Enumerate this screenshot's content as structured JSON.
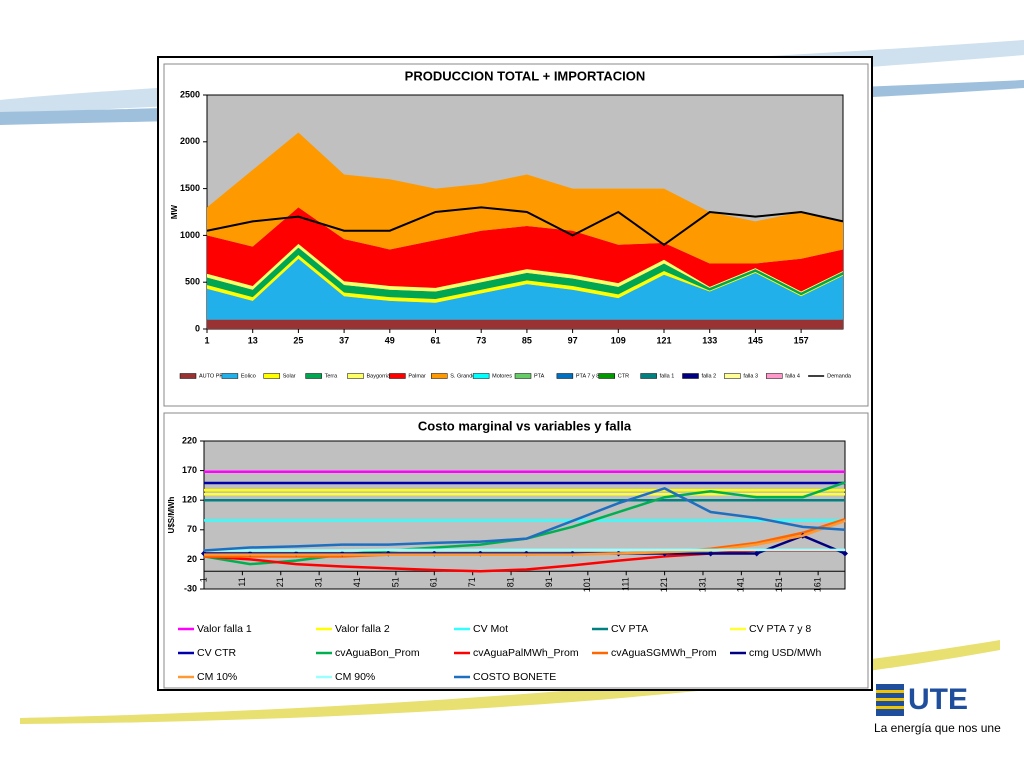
{
  "chart_data": [
    {
      "type": "area",
      "title": "PRODUCCION TOTAL + IMPORTACION",
      "ylabel": "MW",
      "x": [
        1,
        13,
        25,
        37,
        49,
        61,
        73,
        85,
        97,
        109,
        121,
        133,
        145,
        157,
        168
      ],
      "xlim": [
        1,
        168
      ],
      "xticks": [
        1,
        13,
        25,
        37,
        49,
        61,
        73,
        85,
        97,
        109,
        121,
        133,
        145,
        157
      ],
      "ylim": [
        0,
        2500
      ],
      "yticks": [
        0,
        500,
        1000,
        1500,
        2000,
        2500
      ],
      "series": [
        {
          "name": "AUTO PROD",
          "color": "#993333",
          "values": [
            100,
            100,
            100,
            100,
            100,
            100,
            100,
            100,
            100,
            100,
            100,
            100,
            100,
            100,
            100
          ]
        },
        {
          "name": "Eolico",
          "color": "#22b0ea",
          "values": [
            330,
            200,
            650,
            250,
            200,
            180,
            280,
            380,
            320,
            230,
            480,
            300,
            500,
            250,
            470
          ]
        },
        {
          "name": "Solar",
          "color": "#ffff00",
          "values": [
            40,
            40,
            40,
            40,
            40,
            40,
            40,
            40,
            40,
            40,
            40,
            10,
            10,
            10,
            10
          ]
        },
        {
          "name": "Terra",
          "color": "#00a651",
          "values": [
            80,
            80,
            80,
            80,
            80,
            80,
            80,
            80,
            80,
            80,
            80,
            30,
            30,
            30,
            30
          ]
        },
        {
          "name": "Baygorria",
          "color": "#ffff66",
          "values": [
            40,
            40,
            40,
            40,
            40,
            40,
            40,
            40,
            40,
            40,
            40,
            10,
            10,
            10,
            10
          ]
        },
        {
          "name": "Palmar",
          "color": "#ff0000",
          "values": [
            410,
            420,
            390,
            450,
            390,
            510,
            510,
            460,
            470,
            410,
            180,
            250,
            50,
            350,
            230
          ]
        },
        {
          "name": "S. Grande",
          "color": "#ff9900",
          "values": [
            300,
            820,
            800,
            690,
            750,
            550,
            500,
            550,
            450,
            600,
            580,
            550,
            450,
            500,
            300
          ]
        },
        {
          "name": "Motores",
          "color": "#00ffff",
          "values": [
            0,
            0,
            0,
            0,
            0,
            0,
            0,
            0,
            0,
            0,
            0,
            0,
            0,
            0,
            0
          ]
        },
        {
          "name": "PTA",
          "color": "#66cc66",
          "values": [
            0,
            0,
            0,
            0,
            0,
            0,
            0,
            0,
            0,
            0,
            0,
            0,
            0,
            0,
            0
          ]
        },
        {
          "name": "PTA 7 y 8",
          "color": "#0070c0",
          "values": [
            0,
            0,
            0,
            0,
            0,
            0,
            0,
            0,
            0,
            0,
            0,
            0,
            0,
            0,
            0
          ]
        },
        {
          "name": "CTR",
          "color": "#009900",
          "values": [
            0,
            0,
            0,
            0,
            0,
            0,
            0,
            0,
            0,
            0,
            0,
            0,
            0,
            0,
            0
          ]
        },
        {
          "name": "falla 1",
          "color": "#008080",
          "values": [
            0,
            0,
            0,
            0,
            0,
            0,
            0,
            0,
            0,
            0,
            0,
            0,
            0,
            0,
            0
          ]
        },
        {
          "name": "falla 2",
          "color": "#000080",
          "values": [
            0,
            0,
            0,
            0,
            0,
            0,
            0,
            0,
            0,
            0,
            0,
            0,
            0,
            0,
            0
          ]
        },
        {
          "name": "falla 3",
          "color": "#ffff99",
          "values": [
            0,
            0,
            0,
            0,
            0,
            0,
            0,
            0,
            0,
            0,
            0,
            0,
            0,
            0,
            0
          ]
        },
        {
          "name": "falla 4",
          "color": "#ff99cc",
          "values": [
            0,
            0,
            0,
            0,
            0,
            0,
            0,
            0,
            0,
            0,
            0,
            0,
            0,
            0,
            0
          ]
        },
        {
          "name": "Demanda",
          "color": "#000000",
          "type": "line",
          "values": [
            1050,
            1150,
            1200,
            1050,
            1050,
            1250,
            1300,
            1250,
            1000,
            1250,
            900,
            1250,
            1200,
            1250,
            1150
          ]
        }
      ]
    },
    {
      "type": "line",
      "title": "Costo marginal  vs variables  y falla",
      "ylabel": "U$S/MWh",
      "x": [
        1,
        13,
        25,
        37,
        49,
        61,
        73,
        85,
        97,
        109,
        121,
        133,
        145,
        157,
        168
      ],
      "xlim": [
        1,
        168
      ],
      "xticks": [
        1,
        11,
        21,
        31,
        41,
        51,
        61,
        71,
        81,
        91,
        101,
        111,
        121,
        131,
        141,
        151,
        161
      ],
      "ylim": [
        -30,
        220
      ],
      "yticks": [
        -30,
        20,
        70,
        120,
        170,
        220
      ],
      "series": [
        {
          "name": "Valor falla 1",
          "color": "#ff00ff",
          "values": [
            168,
            168,
            168,
            168,
            168,
            168,
            168,
            168,
            168,
            168,
            168,
            168,
            168,
            168,
            168
          ]
        },
        {
          "name": "Valor falla 2",
          "color": "#ffff00",
          "values": [
            137,
            137,
            137,
            137,
            137,
            137,
            137,
            137,
            137,
            137,
            137,
            137,
            137,
            137,
            137
          ]
        },
        {
          "name": "CV Mot",
          "color": "#33ffff",
          "values": [
            86,
            86,
            86,
            86,
            86,
            86,
            86,
            86,
            86,
            86,
            86,
            86,
            86,
            86,
            86
          ]
        },
        {
          "name": "CV PTA",
          "color": "#008080",
          "values": [
            120,
            120,
            120,
            120,
            120,
            120,
            120,
            120,
            120,
            120,
            120,
            120,
            120,
            120,
            120
          ]
        },
        {
          "name": "CV PTA 7 y 8",
          "color": "#ffff33",
          "values": [
            130,
            130,
            130,
            130,
            130,
            130,
            130,
            130,
            130,
            130,
            130,
            130,
            130,
            130,
            130
          ]
        },
        {
          "name": "CV CTR",
          "color": "#0000aa",
          "values": [
            149,
            149,
            149,
            149,
            149,
            149,
            149,
            149,
            149,
            149,
            149,
            149,
            149,
            149,
            149
          ]
        },
        {
          "name": "cvAguaBon_Prom",
          "color": "#00b050",
          "values": [
            25,
            12,
            18,
            28,
            35,
            40,
            45,
            55,
            75,
            100,
            125,
            135,
            125,
            125,
            150
          ]
        },
        {
          "name": "cvAguaPalMWh_Prom",
          "color": "#ff0000",
          "values": [
            25,
            20,
            12,
            8,
            5,
            2,
            0,
            3,
            10,
            18,
            25,
            30,
            35,
            35,
            35
          ]
        },
        {
          "name": "cvAguaSGMWh_Prom",
          "color": "#ff6600",
          "values": [
            25,
            25,
            25,
            25,
            28,
            28,
            28,
            28,
            30,
            30,
            32,
            38,
            48,
            65,
            88
          ]
        },
        {
          "name": "cmg USD/MWh",
          "color": "#000080",
          "marker": true,
          "values": [
            30,
            30,
            30,
            30,
            30,
            30,
            30,
            30,
            30,
            30,
            30,
            30,
            30,
            60,
            30
          ]
        },
        {
          "name": "CM 10%",
          "color": "#ff9933",
          "values": [
            28,
            28,
            28,
            28,
            28,
            28,
            28,
            28,
            28,
            30,
            32,
            35,
            45,
            60,
            85
          ]
        },
        {
          "name": "CM 90%",
          "color": "#99ffff",
          "values": [
            35,
            35,
            35,
            35,
            36,
            36,
            36,
            36,
            36,
            36,
            36,
            36,
            36,
            36,
            36
          ]
        },
        {
          "name": "COSTO BONETE",
          "color": "#1f6fc0",
          "values": [
            35,
            40,
            42,
            45,
            45,
            48,
            50,
            55,
            85,
            115,
            140,
            100,
            90,
            75,
            70
          ]
        }
      ]
    }
  ],
  "logo": {
    "brand": "UTE",
    "tagline": "La energía que nos une"
  }
}
